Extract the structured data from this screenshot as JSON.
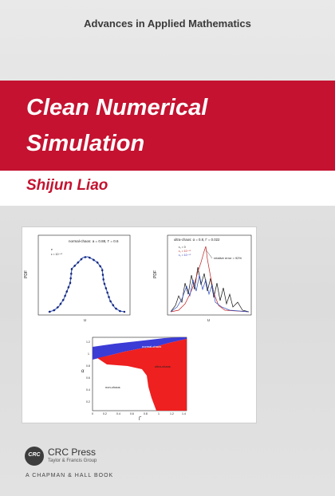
{
  "series": "Advances in Applied Mathematics",
  "title_line1": "Clean Numerical",
  "title_line2": "Simulation",
  "author": "Shijun Liao",
  "figures": {
    "left": {
      "annotation": "normal-chaos: a = 0.88, Γ = 0.6",
      "ylabel": "PDF",
      "xlabel": "u",
      "legend_1": "e",
      "legend_2": "ε = 10⁻⁶⁰"
    },
    "right": {
      "annotation": "ultra-chaos: α = 0.8, Γ = 0.022",
      "ylabel": "PDF",
      "xlabel": "u",
      "legend_1": "ε₁ = 0",
      "legend_2": "ε₁ = 10⁻⁶⁰",
      "legend_3": "ε₁ = 10⁻⁶⁰",
      "error_note": "relative error = 92%"
    },
    "bottom": {
      "ylabel": "α",
      "xlabel": "Γ",
      "region_normal": "normal-chaos",
      "region_ultra": "ultra-chaos",
      "region_non": "non-chaos",
      "y_ticks": [
        "1.2",
        "1",
        "0.8",
        "0.6",
        "0.4",
        "0.2"
      ],
      "x_ticks": [
        "0",
        "0.2",
        "0.4",
        "0.6",
        "0.8",
        "1",
        "1.2",
        "1.4"
      ],
      "colors": {
        "normal": "#3b3bd6",
        "ultra": "#ee2020",
        "non": "#ffffff"
      }
    }
  },
  "publisher": {
    "logo_text": "CRC",
    "name": "CRC Press",
    "subtitle": "Taylor & Francis Group",
    "imprint": "A CHAPMAN & HALL BOOK"
  }
}
